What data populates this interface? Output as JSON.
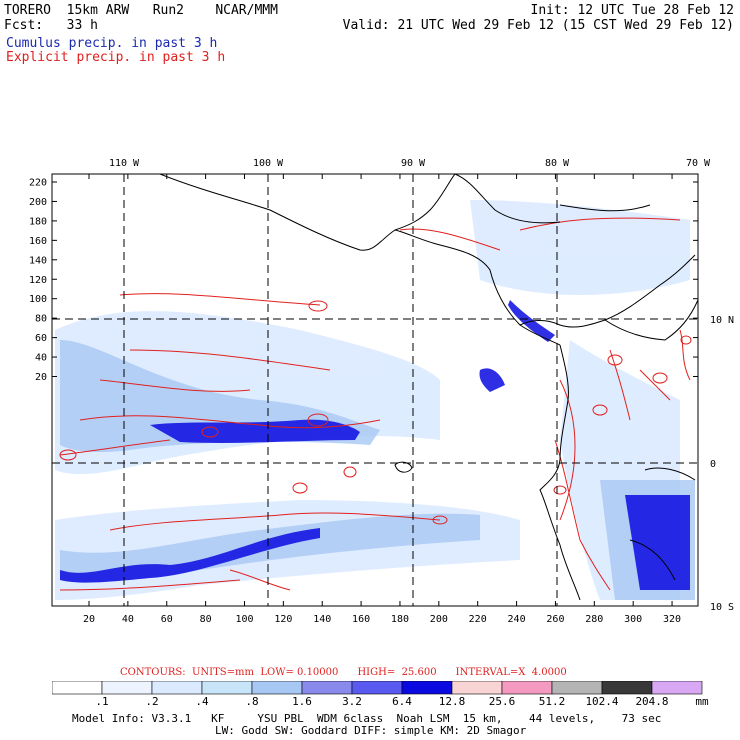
{
  "header": {
    "model": "TORERO  15km ARW   Run2    NCAR/MMM",
    "init": "Init: 12 UTC Tue 28 Feb 12",
    "fcst": "Fcst:   33 h",
    "valid": "Valid: 21 UTC Wed 29 Feb 12 (15 CST Wed 29 Feb 12)",
    "cumulus": "Cumulus precip. in past 3 h",
    "explicit": "Explicit precip. in past 3 h"
  },
  "map": {
    "lon_labels": [
      "110 W",
      "100 W",
      "90 W",
      "80 W",
      "70 W"
    ],
    "lat_labels": [
      "10 N",
      "0",
      "10 S"
    ],
    "y_ticks": [
      "220",
      "200",
      "180",
      "160",
      "140",
      "120",
      "100",
      "80",
      "60",
      "40",
      "20"
    ],
    "x_ticks": [
      "20",
      "40",
      "60",
      "80",
      "100",
      "120",
      "140",
      "160",
      "180",
      "200",
      "220",
      "240",
      "260",
      "280",
      "300",
      "320"
    ],
    "colors": {
      "cumulus": "#1a2bb0",
      "explicit": "#e0201e",
      "coast": "#000000"
    }
  },
  "legend": {
    "contours": "CONTOURS:  UNITS=mm  LOW= 0.10000      HIGH=  25.600      INTERVAL=X  4.0000",
    "bins": [
      ".1",
      ".2",
      ".4",
      ".8",
      "1.6",
      "3.2",
      "6.4",
      "12.8",
      "25.6",
      "51.2",
      "102.4",
      "204.8"
    ],
    "unit": "mm",
    "colors": [
      "#ffffff",
      "#eef4ff",
      "#dbeaff",
      "#c8e4f8",
      "#a8c8f4",
      "#8a8aec",
      "#5a5af0",
      "#0a0ae0",
      "#f8d4d4",
      "#f49ac0",
      "#b4b4b4",
      "#383838",
      "#d8a8f4"
    ]
  },
  "model_info": {
    "line1": "Model Info: V3.3.1   KF     YSU PBL  WDM 6class  Noah LSM  15 km,    44 levels,    73 sec",
    "line2": "LW: Godd SW: Goddard DIFF: simple KM: 2D Smagor"
  }
}
